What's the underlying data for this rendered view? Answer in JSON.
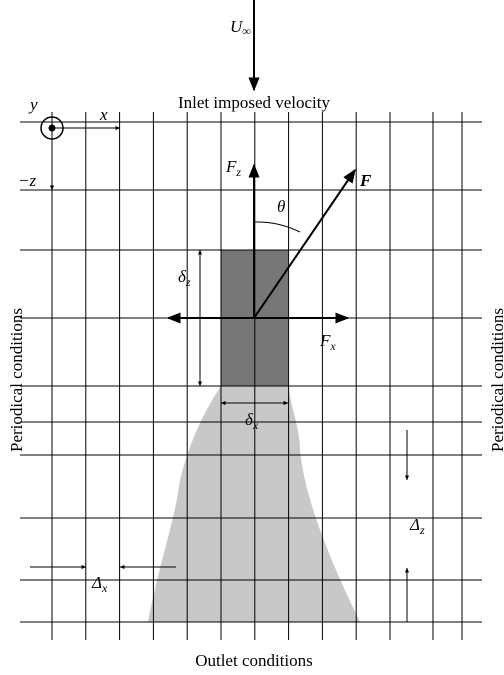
{
  "inlet": {
    "symbol": "U",
    "sub": "∞",
    "label": "Inlet imposed velocity"
  },
  "axes": {
    "y": "y",
    "x": "x",
    "z": "−z"
  },
  "forces": {
    "fz": {
      "symbol": "F",
      "sub": "z"
    },
    "f": "F",
    "theta": "θ",
    "fx": {
      "symbol": "F",
      "sub": "x"
    }
  },
  "sizes": {
    "dz": {
      "symbol": "δ",
      "sub": "z"
    },
    "dx": {
      "symbol": "δ",
      "sub": "x"
    }
  },
  "mesh": {
    "dz": {
      "symbol": "Δ",
      "sub": "z"
    },
    "dx": {
      "symbol": "Δ",
      "sub": "x"
    }
  },
  "boundaries": {
    "left": "Periodical conditions",
    "right": "Periodical conditions",
    "bottom": "Outlet conditions"
  }
}
